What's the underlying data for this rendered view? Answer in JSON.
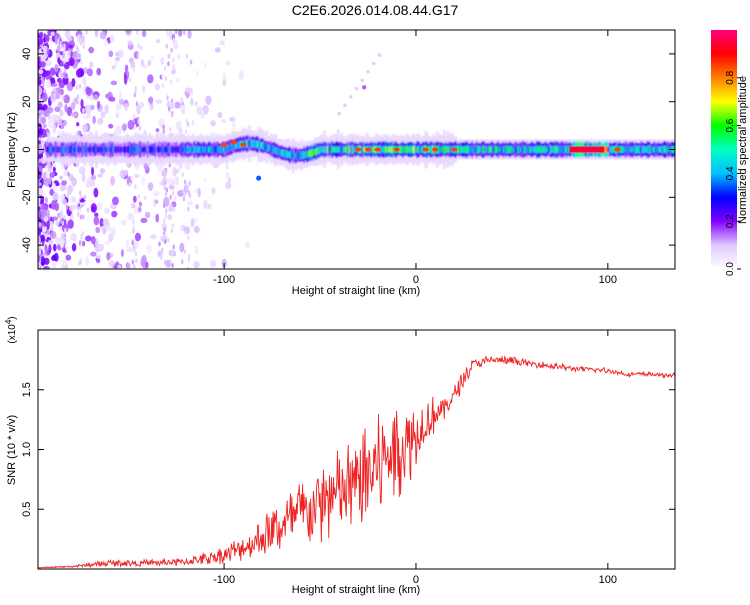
{
  "title": "C2E6.2026.014.08.44.G17",
  "chart_data": [
    {
      "type": "heatmap",
      "xlabel": "Height of straight line (km)",
      "ylabel": "Frequency (Hz)",
      "xlim": [
        -197,
        135
      ],
      "ylim": [
        -50,
        50
      ],
      "xticks": [
        {
          "value": -100,
          "label": "-100"
        },
        {
          "value": 0,
          "label": "0"
        },
        {
          "value": 100,
          "label": "100"
        }
      ],
      "yticks": [
        {
          "value": 40,
          "label": "40"
        },
        {
          "value": 20,
          "label": "20"
        },
        {
          "value": 0,
          "label": "0"
        },
        {
          "value": -20,
          "label": "-20"
        },
        {
          "value": -40,
          "label": "-40"
        }
      ],
      "colorbar": {
        "label": "Normalized spectral amplitude",
        "range": [
          0,
          1
        ],
        "ticks": [
          {
            "value": 0.0,
            "label": "0.0"
          },
          {
            "value": 0.2,
            "label": "0.2"
          },
          {
            "value": 0.4,
            "label": "0.4"
          },
          {
            "value": 0.6,
            "label": "0.6"
          },
          {
            "value": 0.8,
            "label": "0.8"
          }
        ],
        "colors": [
          "#ffffff",
          "#e0c8ff",
          "#8000ff",
          "#0000ff",
          "#00c0ff",
          "#00ffc0",
          "#00ff00",
          "#ffff00",
          "#ff8000",
          "#ff0000",
          "#ff0080"
        ]
      },
      "band": {
        "description": "main spectral ridge near 0 Hz",
        "segments": [
          {
            "x0": -190,
            "x1": -120,
            "amp": 0.35
          },
          {
            "x0": -120,
            "x1": -60,
            "amp": 0.45
          },
          {
            "x0": -60,
            "x1": 20,
            "amp": 0.6
          },
          {
            "x0": 20,
            "x1": 80,
            "amp": 0.55
          },
          {
            "x0": 80,
            "x1": 100,
            "amp": 0.95
          },
          {
            "x0": 100,
            "x1": 135,
            "amp": 0.5
          }
        ]
      }
    },
    {
      "type": "line",
      "xlabel": "Height of straight line (km)",
      "ylabel": "SNR (10 * v/v)",
      "yscale_label": "(x10",
      "yscale_exp": "4",
      "xlim": [
        -197,
        135
      ],
      "ylim": [
        0,
        2.0
      ],
      "xticks": [
        {
          "value": -100,
          "label": "-100"
        },
        {
          "value": 0,
          "label": "0"
        },
        {
          "value": 100,
          "label": "100"
        }
      ],
      "yticks": [
        {
          "value": 0.5,
          "label": "0.5"
        },
        {
          "value": 1.0,
          "label": "1.0"
        },
        {
          "value": 1.5,
          "label": "1.5"
        }
      ],
      "series": [
        {
          "name": "SNR",
          "color": "#ee2222",
          "x": [
            -197,
            -180,
            -160,
            -140,
            -120,
            -100,
            -90,
            -80,
            -70,
            -60,
            -50,
            -40,
            -30,
            -20,
            -15,
            -10,
            -5,
            0,
            5,
            10,
            15,
            20,
            25,
            30,
            40,
            50,
            60,
            70,
            80,
            90,
            100,
            110,
            120,
            135
          ],
          "values": [
            0.01,
            0.02,
            0.05,
            0.05,
            0.06,
            0.12,
            0.18,
            0.26,
            0.36,
            0.45,
            0.55,
            0.62,
            0.72,
            0.85,
            0.95,
            1.0,
            1.05,
            1.12,
            1.22,
            1.3,
            1.35,
            1.45,
            1.6,
            1.72,
            1.75,
            1.74,
            1.72,
            1.7,
            1.68,
            1.67,
            1.66,
            1.63,
            1.63,
            1.62
          ],
          "noise": [
            0.004,
            0.008,
            0.03,
            0.03,
            0.04,
            0.08,
            0.12,
            0.18,
            0.24,
            0.3,
            0.36,
            0.4,
            0.42,
            0.45,
            0.45,
            0.42,
            0.38,
            0.3,
            0.22,
            0.16,
            0.12,
            0.09,
            0.07,
            0.05,
            0.04,
            0.04,
            0.03,
            0.03,
            0.025,
            0.025,
            0.025,
            0.02,
            0.02,
            0.02
          ]
        }
      ]
    }
  ]
}
